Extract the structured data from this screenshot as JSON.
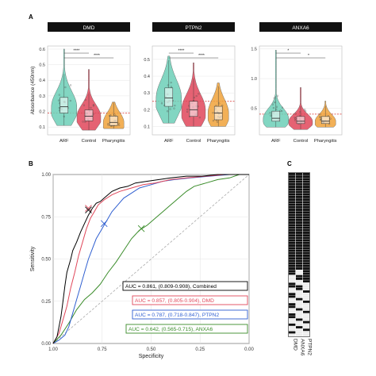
{
  "panel_labels": {
    "a": "A",
    "b": "B",
    "c": "C"
  },
  "colors": {
    "ARF": "#6ccfb7",
    "Control": "#e0475a",
    "Pharyngitis": "#f0a23a",
    "combined": "#000000",
    "DMD": "#e0475a",
    "PTPN2": "#2f5fd0",
    "ANXA6": "#3a8c2a",
    "strip": "#111111",
    "heat_on": "#111111",
    "heat_off": "#ececec"
  },
  "chart_data": [
    {
      "type": "violin",
      "title": "DMD",
      "ylabel": "Absorbance (450nm)",
      "categories": [
        "ARF",
        "Control",
        "Pharyngitis"
      ],
      "ylim": [
        0.05,
        0.62
      ],
      "yticks": [
        "0.6",
        "0.5",
        "0.4",
        "0.3",
        "0.2",
        "0.1"
      ],
      "ytick_values": [
        0.6,
        0.5,
        0.4,
        0.3,
        0.2,
        0.1
      ],
      "cutoff": 0.19,
      "significance": [
        "****",
        "****"
      ],
      "stats": [
        {
          "q1": 0.19,
          "median": 0.23,
          "q3": 0.29,
          "min": 0.11,
          "max": 0.6
        },
        {
          "q1": 0.14,
          "median": 0.17,
          "q3": 0.21,
          "min": 0.08,
          "max": 0.47
        },
        {
          "q1": 0.11,
          "median": 0.13,
          "q3": 0.17,
          "min": 0.09,
          "max": 0.26
        }
      ]
    },
    {
      "type": "violin",
      "title": "PTPN2",
      "categories": [
        "ARF",
        "Control",
        "Pharyngitis"
      ],
      "ylim": [
        0.05,
        0.58
      ],
      "yticks": [
        "0.5",
        "0.4",
        "0.3",
        "0.2",
        "0.1"
      ],
      "ytick_values": [
        0.5,
        0.4,
        0.3,
        0.2,
        0.1
      ],
      "cutoff": 0.25,
      "significance": [
        "****",
        "****"
      ],
      "stats": [
        {
          "q1": 0.22,
          "median": 0.27,
          "q3": 0.33,
          "min": 0.12,
          "max": 0.52
        },
        {
          "q1": 0.16,
          "median": 0.2,
          "q3": 0.25,
          "min": 0.1,
          "max": 0.48
        },
        {
          "q1": 0.14,
          "median": 0.18,
          "q3": 0.22,
          "min": 0.1,
          "max": 0.36
        }
      ]
    },
    {
      "type": "violin",
      "title": "ANXA6",
      "categories": [
        "ARF",
        "Control",
        "Pharyngitis"
      ],
      "ylim": [
        0.05,
        1.55
      ],
      "yticks": [
        "1.5",
        "1.0",
        "0.5"
      ],
      "ytick_values": [
        1.5,
        1.0,
        0.5
      ],
      "cutoff": 0.4,
      "significance": [
        "*",
        "*"
      ],
      "stats": [
        {
          "q1": 0.28,
          "median": 0.33,
          "q3": 0.45,
          "min": 0.18,
          "max": 1.48
        },
        {
          "q1": 0.24,
          "median": 0.28,
          "q3": 0.36,
          "min": 0.14,
          "max": 0.85
        },
        {
          "q1": 0.24,
          "median": 0.28,
          "q3": 0.36,
          "min": 0.18,
          "max": 0.62
        }
      ]
    },
    {
      "type": "line",
      "xlabel": "Specificity",
      "ylabel": "Sensitivity",
      "xlim": [
        1.0,
        0.0
      ],
      "ylim": [
        0.0,
        1.0
      ],
      "xticks": [
        "1.00",
        "0.75",
        "0.50",
        "0.25",
        "0.00"
      ],
      "xtick_values": [
        1.0,
        0.75,
        0.5,
        0.25,
        0.0
      ],
      "yticks": [
        "0.00",
        "0.25",
        "0.50",
        "0.75",
        "1.00"
      ],
      "ytick_values": [
        0.0,
        0.25,
        0.5,
        0.75,
        1.0
      ],
      "grid": true,
      "series": [
        {
          "name": "Combined",
          "color_key": "combined",
          "auc": "AUC = 0.861, (0.809-0.908), Combined",
          "x": [
            1.0,
            0.98,
            0.97,
            0.96,
            0.95,
            0.94,
            0.93,
            0.91,
            0.9,
            0.88,
            0.86,
            0.84,
            0.82,
            0.8,
            0.78,
            0.76,
            0.74,
            0.7,
            0.66,
            0.62,
            0.58,
            0.52,
            0.46,
            0.4,
            0.32,
            0.24,
            0.16,
            0.08,
            0.0
          ],
          "y": [
            0.0,
            0.04,
            0.1,
            0.16,
            0.25,
            0.34,
            0.42,
            0.5,
            0.55,
            0.6,
            0.66,
            0.71,
            0.76,
            0.8,
            0.83,
            0.84,
            0.86,
            0.9,
            0.92,
            0.93,
            0.95,
            0.96,
            0.97,
            0.98,
            0.99,
            0.99,
            1.0,
            1.0,
            1.0
          ],
          "marker": [
            0.82,
            0.79
          ]
        },
        {
          "name": "DMD",
          "color_key": "DMD",
          "auc": "AUC = 0.857, (0.805-0.904), DMD",
          "x": [
            1.0,
            0.97,
            0.95,
            0.93,
            0.91,
            0.89,
            0.87,
            0.85,
            0.83,
            0.81,
            0.79,
            0.77,
            0.74,
            0.7,
            0.66,
            0.6,
            0.54,
            0.48,
            0.4,
            0.32,
            0.22,
            0.12,
            0.0
          ],
          "y": [
            0.0,
            0.06,
            0.14,
            0.22,
            0.33,
            0.42,
            0.52,
            0.6,
            0.68,
            0.74,
            0.78,
            0.82,
            0.85,
            0.88,
            0.9,
            0.92,
            0.94,
            0.95,
            0.97,
            0.98,
            0.99,
            1.0,
            1.0
          ],
          "marker": [
            0.82,
            0.8
          ]
        },
        {
          "name": "PTPN2",
          "color_key": "PTPN2",
          "auc": "AUC = 0.787, (0.718-0.847), PTPN2",
          "x": [
            1.0,
            0.97,
            0.94,
            0.92,
            0.9,
            0.88,
            0.86,
            0.84,
            0.82,
            0.8,
            0.78,
            0.76,
            0.74,
            0.72,
            0.7,
            0.67,
            0.64,
            0.6,
            0.56,
            0.5,
            0.44,
            0.38,
            0.3,
            0.2,
            0.1,
            0.0
          ],
          "y": [
            0.0,
            0.02,
            0.05,
            0.1,
            0.18,
            0.26,
            0.34,
            0.42,
            0.5,
            0.56,
            0.62,
            0.66,
            0.7,
            0.74,
            0.78,
            0.82,
            0.86,
            0.89,
            0.92,
            0.94,
            0.96,
            0.97,
            0.98,
            0.99,
            1.0,
            1.0
          ],
          "marker": [
            0.74,
            0.71
          ]
        },
        {
          "name": "ANXA6",
          "color_key": "ANXA6",
          "auc": "AUC = 0.642, (0.565-0.715), ANXA6",
          "x": [
            1.0,
            0.96,
            0.92,
            0.88,
            0.84,
            0.8,
            0.76,
            0.72,
            0.68,
            0.64,
            0.6,
            0.56,
            0.52,
            0.48,
            0.44,
            0.4,
            0.36,
            0.32,
            0.28,
            0.22,
            0.16,
            0.1,
            0.05,
            0.0
          ],
          "y": [
            0.0,
            0.05,
            0.12,
            0.2,
            0.26,
            0.3,
            0.35,
            0.42,
            0.48,
            0.55,
            0.62,
            0.67,
            0.7,
            0.74,
            0.78,
            0.82,
            0.86,
            0.9,
            0.93,
            0.95,
            0.97,
            0.98,
            1.0,
            1.0
          ],
          "marker": [
            0.55,
            0.68
          ]
        }
      ]
    },
    {
      "type": "heatmap",
      "columns": [
        "DMD",
        "ANXA6",
        "PTPN2"
      ],
      "rows": 64,
      "on_rows": [
        [
          0,
          1,
          2,
          3,
          4,
          5,
          6,
          7,
          8,
          9,
          10,
          11,
          12,
          13,
          14,
          15,
          16,
          17,
          18,
          19,
          20,
          21,
          22,
          23,
          24,
          25,
          26,
          27,
          28,
          29,
          30,
          31,
          32,
          33,
          34,
          35,
          36,
          37,
          38,
          39,
          43,
          44,
          47,
          48,
          51,
          52,
          55,
          56,
          59,
          62
        ],
        [
          0,
          1,
          2,
          3,
          4,
          5,
          6,
          7,
          8,
          9,
          10,
          11,
          12,
          13,
          14,
          15,
          16,
          17,
          18,
          19,
          20,
          21,
          22,
          23,
          24,
          25,
          26,
          27,
          28,
          29,
          30,
          31,
          32,
          33,
          34,
          35,
          36,
          37,
          40,
          41,
          44,
          45,
          49,
          53,
          57,
          60
        ],
        [
          0,
          1,
          2,
          3,
          4,
          5,
          6,
          7,
          8,
          9,
          10,
          11,
          12,
          13,
          14,
          15,
          16,
          17,
          18,
          19,
          20,
          21,
          22,
          23,
          24,
          25,
          26,
          27,
          28,
          29,
          30,
          31,
          32,
          33,
          34,
          35,
          36,
          37,
          38,
          39,
          40,
          41,
          42,
          46,
          50,
          54,
          58,
          61
        ]
      ]
    }
  ]
}
